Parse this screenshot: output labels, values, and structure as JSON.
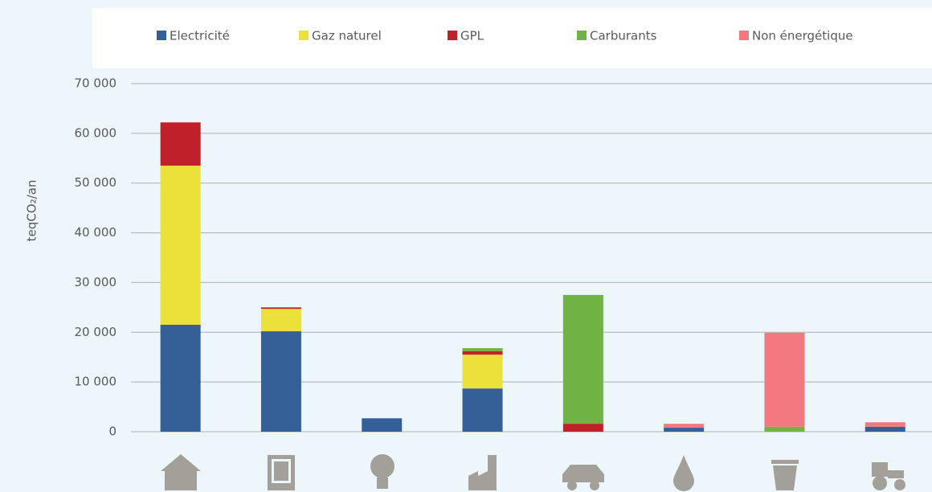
{
  "chart_data": {
    "type": "stacked_bar",
    "y_axis_label": "teqCO₂/an",
    "categories": [
      null,
      null,
      null,
      null,
      null,
      null,
      null,
      null
    ],
    "series": [
      {
        "name": "Electricité",
        "color": "#356097",
        "values": [
          21500,
          20200,
          2700,
          8700,
          0,
          800,
          0,
          1000
        ]
      },
      {
        "name": "Gaz naturel",
        "color": "#ece03b",
        "values": [
          32000,
          4500,
          0,
          6800,
          0,
          0,
          0,
          0
        ]
      },
      {
        "name": "GPL",
        "color": "#c0202a",
        "values": [
          8700,
          300,
          0,
          700,
          1600,
          0,
          0,
          0
        ]
      },
      {
        "name": "Carburants",
        "color": "#70b244",
        "values": [
          0,
          0,
          0,
          600,
          25900,
          0,
          1000,
          0
        ]
      },
      {
        "name": "Non énergétique",
        "color": "#f4797f",
        "values": [
          0,
          0,
          0,
          0,
          0,
          800,
          18900,
          900
        ]
      }
    ],
    "ylim": [
      0,
      70000
    ],
    "yticks": [
      0,
      {
        "value": 10000,
        "label": "10 000"
      },
      {
        "value": 20000,
        "label": "20 000"
      },
      {
        "value": 30000,
        "label": "30 000"
      },
      {
        "value": 40000,
        "label": "40 000"
      },
      {
        "value": 50000,
        "label": "50 000"
      },
      {
        "value": 60000,
        "label": "60 000"
      },
      {
        "value": 70000,
        "label": "70 000"
      }
    ],
    "grid": true,
    "legend": "top"
  }
}
